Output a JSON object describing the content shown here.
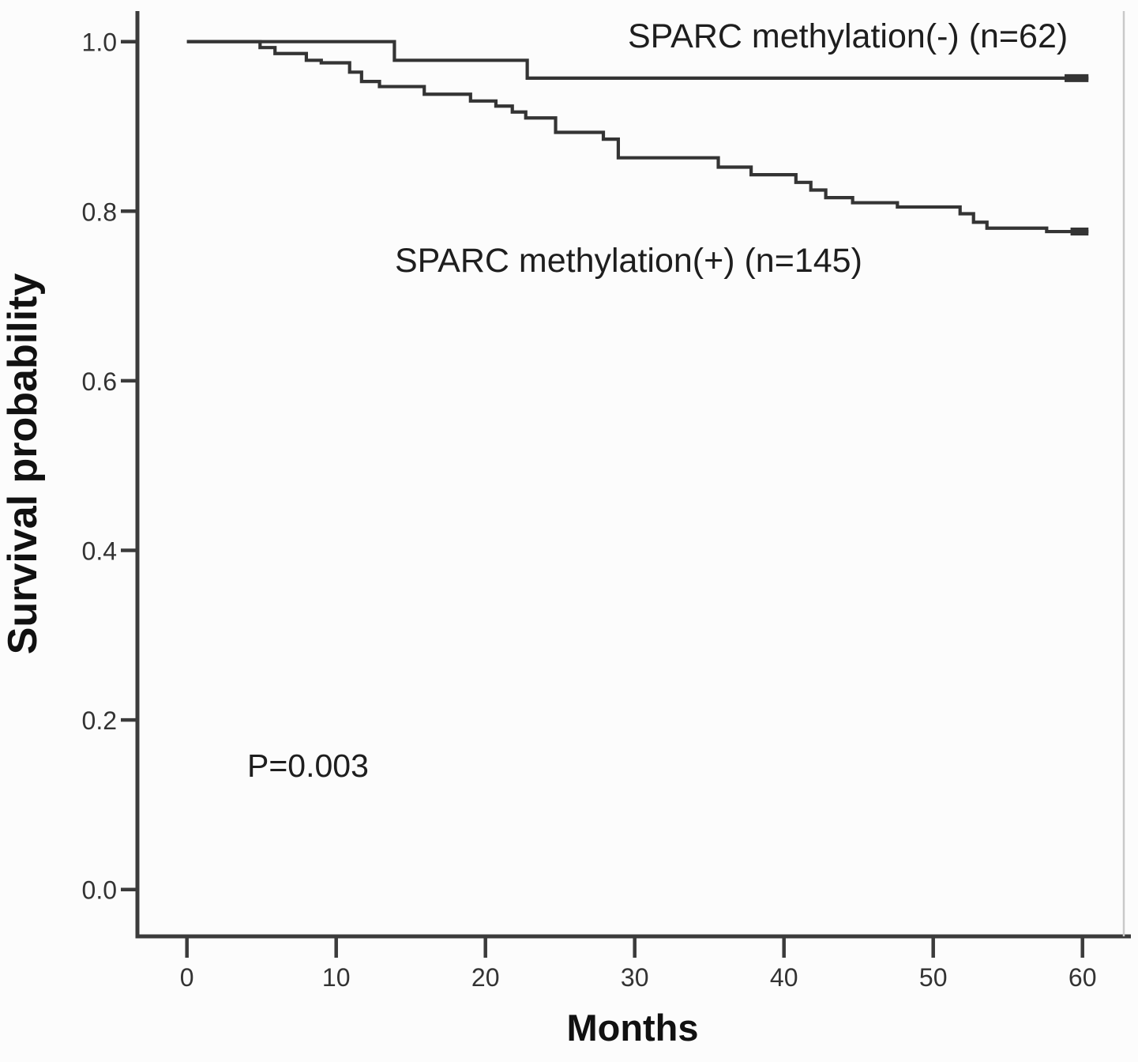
{
  "figure": {
    "background": "#fcfcfc",
    "curve_color": "#343434",
    "axis_color": "#3b3b3b",
    "right_border_color": "#c9c9c9",
    "tick_text_color": "#333333"
  },
  "annotations": {
    "p_value": "P=0.003"
  },
  "chart_data": {
    "type": "line",
    "subtype": "kaplan-meier-step-function",
    "title": "",
    "xlabel": "Months",
    "ylabel": "Survival probability",
    "grid": false,
    "legend_position": "inline-text-annotations",
    "xlim": [
      -3.3,
      63.2
    ],
    "ylim": [
      -0.054,
      1.036
    ],
    "x_ticks": [
      {
        "value": 0,
        "label": "0"
      },
      {
        "value": 10,
        "label": "10"
      },
      {
        "value": 20,
        "label": "20"
      },
      {
        "value": 30,
        "label": "30"
      },
      {
        "value": 40,
        "label": "40"
      },
      {
        "value": 50,
        "label": "50"
      },
      {
        "value": 60,
        "label": "60"
      }
    ],
    "y_ticks": [
      {
        "value": 1.0,
        "label": "1.0"
      },
      {
        "value": 0.8,
        "label": "0.8"
      },
      {
        "value": 0.6,
        "label": "0.6"
      },
      {
        "value": 0.4,
        "label": "0.4"
      },
      {
        "value": 0.2,
        "label": "0.2"
      },
      {
        "value": 0.0,
        "label": "0.0"
      }
    ],
    "p_value_annotation": "P=0.003",
    "series": [
      {
        "name": "SPARC methylation(-)",
        "n": 62,
        "label": "SPARC methylation(-) (n=62)",
        "step_points_month_survival": [
          [
            0,
            1.0
          ],
          [
            13.9,
            0.978
          ],
          [
            22.8,
            0.957
          ]
        ],
        "end_month": 60.4,
        "final_survival": 0.957,
        "censor_marks": [
          {
            "from_month": 58.8,
            "to_month": 60.4,
            "survival": 0.957
          }
        ]
      },
      {
        "name": "SPARC methylation(+)",
        "n": 145,
        "label": "SPARC methylation(+) (n=145)",
        "step_points_month_survival": [
          [
            0,
            1.0
          ],
          [
            4.9,
            0.993
          ],
          [
            5.9,
            0.986
          ],
          [
            8.0,
            0.978
          ],
          [
            9.0,
            0.975
          ],
          [
            10.9,
            0.964
          ],
          [
            11.7,
            0.953
          ],
          [
            12.9,
            0.947
          ],
          [
            15.9,
            0.938
          ],
          [
            19.0,
            0.93
          ],
          [
            20.7,
            0.924
          ],
          [
            21.8,
            0.917
          ],
          [
            22.7,
            0.91
          ],
          [
            24.7,
            0.893
          ],
          [
            27.9,
            0.885
          ],
          [
            28.9,
            0.863
          ],
          [
            35.6,
            0.852
          ],
          [
            37.8,
            0.843
          ],
          [
            40.8,
            0.834
          ],
          [
            41.8,
            0.825
          ],
          [
            42.8,
            0.816
          ],
          [
            44.6,
            0.81
          ],
          [
            47.6,
            0.805
          ],
          [
            51.8,
            0.797
          ],
          [
            52.7,
            0.787
          ],
          [
            53.6,
            0.78
          ],
          [
            57.6,
            0.776
          ]
        ],
        "end_month": 60.4,
        "final_survival": 0.776,
        "censor_marks": [
          {
            "from_month": 59.2,
            "to_month": 60.4,
            "survival": 0.776
          }
        ]
      }
    ]
  }
}
